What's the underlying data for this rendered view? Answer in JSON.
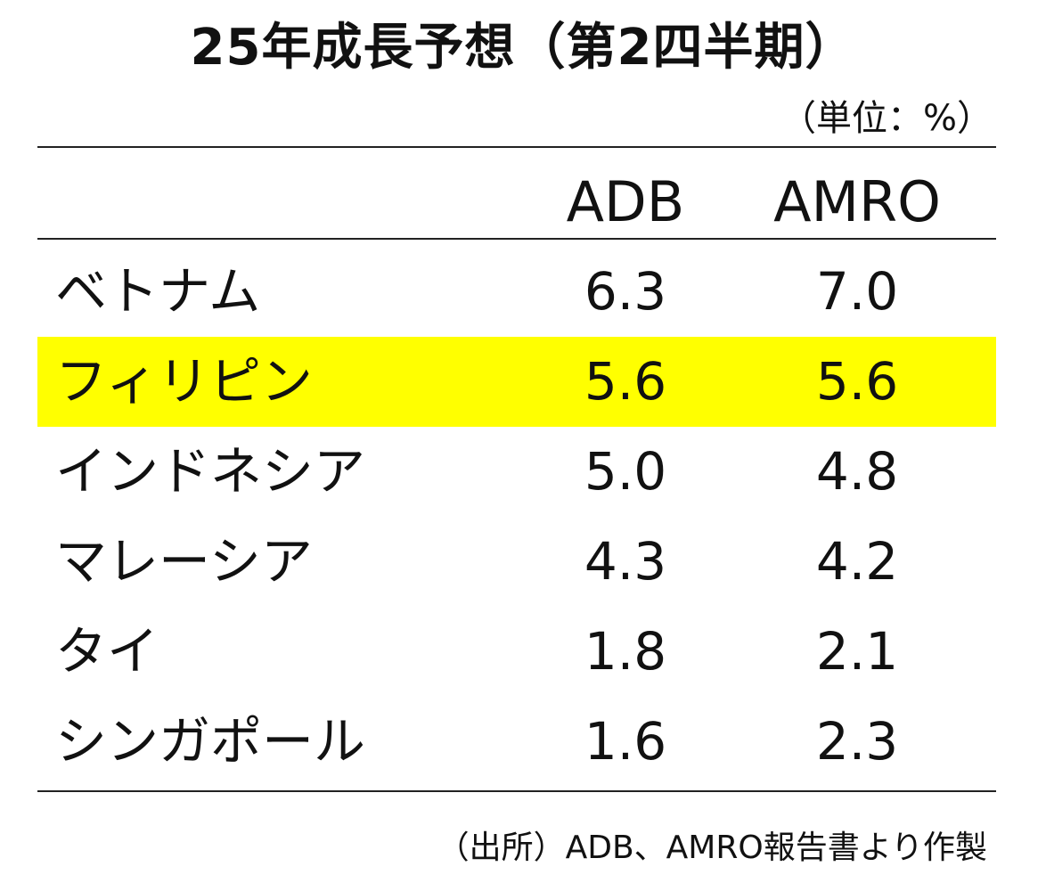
{
  "chart_data": {
    "type": "table",
    "title": "25年成長予想（第2四半期）",
    "unit": "（単位：%）",
    "columns": [
      "",
      "ADB",
      "AMRO"
    ],
    "rows": [
      {
        "label": "ベトナム",
        "values": [
          "6.3",
          "7.0"
        ],
        "highlight": false
      },
      {
        "label": "フィリピン",
        "values": [
          "5.6",
          "5.6"
        ],
        "highlight": true
      },
      {
        "label": "インドネシア",
        "values": [
          "5.0",
          "4.8"
        ],
        "highlight": false
      },
      {
        "label": "マレーシア",
        "values": [
          "4.3",
          "4.2"
        ],
        "highlight": false
      },
      {
        "label": "タイ",
        "values": [
          "1.8",
          "2.1"
        ],
        "highlight": false
      },
      {
        "label": "シンガポール",
        "values": [
          "1.6",
          "2.3"
        ],
        "highlight": false
      }
    ],
    "source": "（出所）ADB、AMRO報告書より作製",
    "highlight_color": "#ffff00"
  }
}
